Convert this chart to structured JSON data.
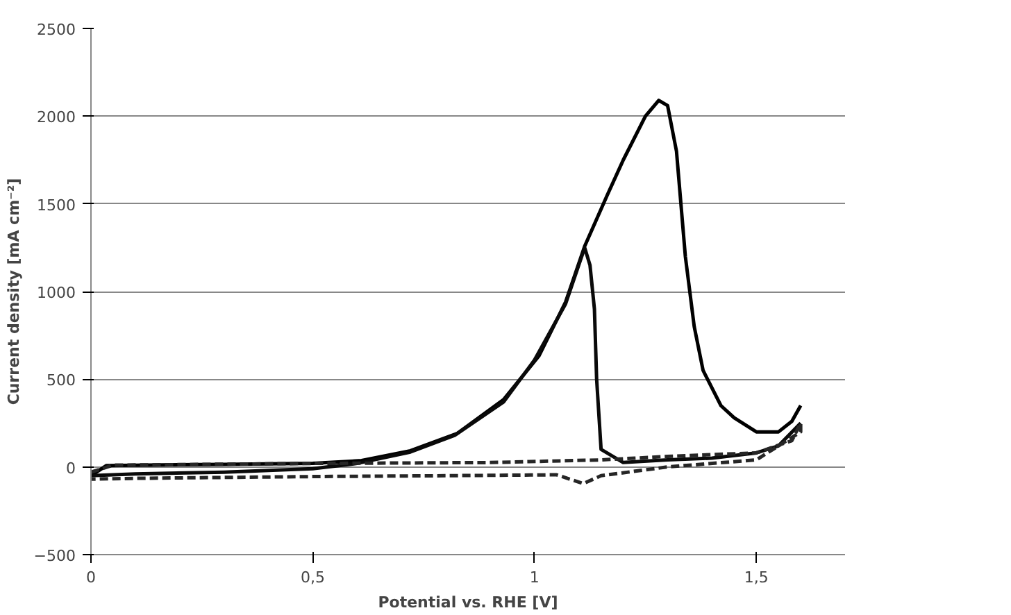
{
  "chart_data": {
    "type": "line",
    "xlabel": "Potential vs. RHE [V]",
    "ylabel": "Current density [mA cm⁻²]",
    "xlim": [
      0,
      1.7
    ],
    "xticks": [
      0,
      {
        "value": 0.5,
        "label": "0,5"
      },
      1,
      {
        "value": 1.5,
        "label": "1,5"
      }
    ],
    "ylim": [
      -500,
      2500
    ],
    "yticks": [
      -500,
      0,
      500,
      1000,
      1500,
      2000,
      2500
    ],
    "grid": "y",
    "marker": "none",
    "series": [
      {
        "color": "#000000",
        "line_style": "solid",
        "x": [
          0,
          0.035,
          0.3,
          0.5,
          0.61,
          0.72,
          0.825,
          0.93,
          1.01,
          1.07,
          1.113,
          1.164,
          1.2,
          1.25,
          1.28,
          1.3,
          1.32,
          1.34,
          1.36,
          1.38,
          1.42,
          1.45,
          1.5,
          1.55,
          1.58,
          1.6
        ],
        "values": [
          -50,
          8,
          15,
          20,
          36,
          92,
          190,
          383,
          633,
          940,
          1258,
          1550,
          1750,
          2000,
          2090,
          2060,
          1800,
          1200,
          800,
          550,
          350,
          280,
          200,
          200,
          260,
          350
        ]
      },
      {
        "color": "#0a0a0a",
        "line_style": "solid",
        "x": [
          1.6,
          1.55,
          1.5,
          1.4,
          1.3,
          1.2,
          1.15,
          1.14,
          1.135,
          1.125,
          1.113,
          1.07,
          1.0,
          0.93,
          0.82,
          0.72,
          0.6,
          0.5,
          0.3,
          0.1,
          0
        ],
        "values": [
          250,
          120,
          80,
          50,
          40,
          25,
          100,
          500,
          900,
          1150,
          1250,
          930,
          610,
          370,
          180,
          85,
          20,
          -10,
          -30,
          -40,
          -50
        ]
      },
      {
        "color": "#262626",
        "line_style": "dashed",
        "x": [
          0,
          0.05,
          0.5,
          0.9,
          1.15,
          1.3,
          1.5,
          1.58,
          1.6,
          1.6,
          1.5,
          1.3,
          1.15,
          1.11,
          1.05,
          0.8,
          0.5,
          0.1,
          0
        ],
        "values": [
          -30,
          10,
          20,
          25,
          40,
          60,
          80,
          150,
          250,
          200,
          40,
          0,
          -50,
          -95,
          -45,
          -50,
          -55,
          -65,
          -70
        ]
      }
    ]
  }
}
